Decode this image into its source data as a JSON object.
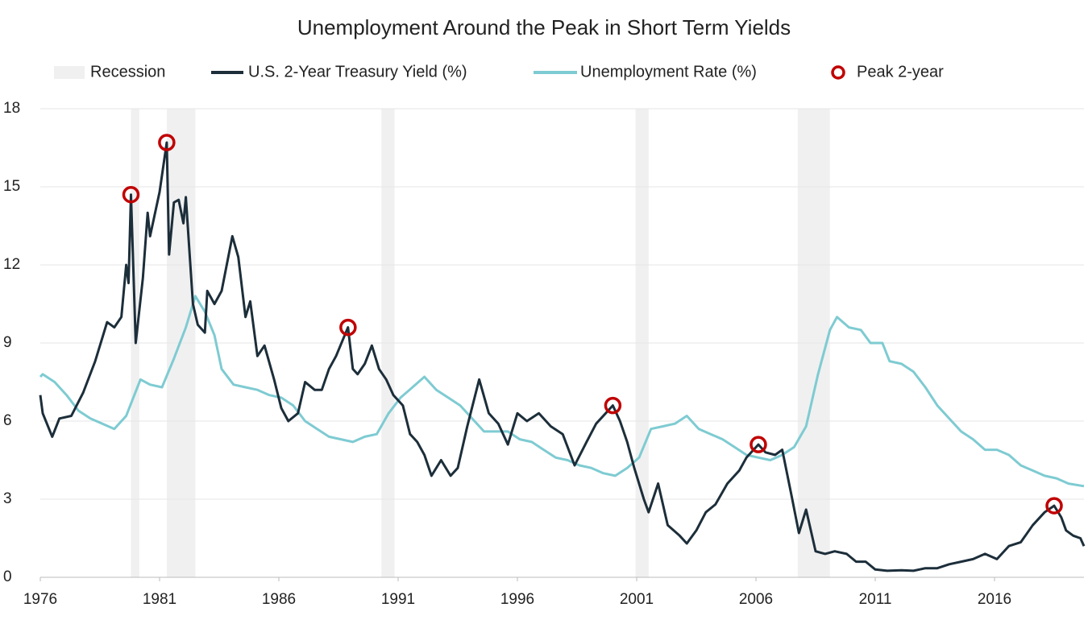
{
  "chart_data": {
    "type": "line",
    "title": "Unemployment Around the Peak in Short Term Yields",
    "xlim": [
      1976,
      2019.75
    ],
    "xticks": [
      1976,
      1981,
      1986,
      1991,
      1996,
      2001,
      2006,
      2011,
      2016
    ],
    "ylim": [
      0,
      18
    ],
    "yticks": [
      0,
      3,
      6,
      9,
      12,
      15,
      18
    ],
    "grid": true,
    "legend": "top",
    "series": [
      {
        "name": "Recession",
        "type": "band",
        "color": "#f0f0f0",
        "ranges": [
          [
            1979.8,
            1980.15
          ],
          [
            1981.3,
            1982.5
          ],
          [
            1990.3,
            1990.85
          ],
          [
            2000.95,
            2001.5
          ],
          [
            2007.75,
            2009.1
          ]
        ]
      },
      {
        "name": "U.S. 2-Year Treasury Yield (%)",
        "type": "line",
        "color": "#1c2e3a",
        "x": [
          1976.0,
          1976.1,
          1976.5,
          1976.8,
          1977.3,
          1977.8,
          1978.3,
          1978.8,
          1979.1,
          1979.4,
          1979.6,
          1979.7,
          1979.8,
          1980.0,
          1980.3,
          1980.5,
          1980.6,
          1981.0,
          1981.3,
          1981.4,
          1981.6,
          1981.8,
          1982.0,
          1982.1,
          1982.4,
          1982.6,
          1982.9,
          1983.0,
          1983.3,
          1983.6,
          1984.05,
          1984.3,
          1984.6,
          1984.8,
          1985.1,
          1985.4,
          1985.8,
          1986.1,
          1986.4,
          1986.8,
          1987.1,
          1987.5,
          1987.8,
          1988.1,
          1988.4,
          1988.9,
          1989.1,
          1989.3,
          1989.6,
          1989.9,
          1990.2,
          1990.5,
          1990.8,
          1991.2,
          1991.5,
          1991.8,
          1992.1,
          1992.4,
          1992.8,
          1993.2,
          1993.5,
          1993.9,
          1994.4,
          1994.8,
          1995.2,
          1995.6,
          1996.0,
          1996.4,
          1996.9,
          1997.4,
          1997.9,
          1998.4,
          1998.9,
          1999.3,
          2000.0,
          2000.3,
          2000.6,
          2000.9,
          2001.3,
          2001.5,
          2001.9,
          2002.3,
          2002.8,
          2003.1,
          2003.5,
          2003.9,
          2004.3,
          2004.8,
          2005.3,
          2005.6,
          2006.1,
          2006.4,
          2006.8,
          2007.1,
          2007.5,
          2007.8,
          2008.1,
          2008.5,
          2008.9,
          2009.3,
          2009.8,
          2010.2,
          2010.6,
          2011.0,
          2011.5,
          2012.1,
          2012.6,
          2013.1,
          2013.6,
          2014.1,
          2014.6,
          2015.1,
          2015.6,
          2016.1,
          2016.6,
          2017.1,
          2017.6,
          2018.1,
          2018.5,
          2018.8,
          2019.0,
          2019.3,
          2019.6,
          2019.75
        ],
        "values": [
          7.0,
          6.3,
          5.4,
          6.1,
          6.2,
          7.1,
          8.3,
          9.8,
          9.6,
          10.0,
          12.0,
          11.3,
          14.7,
          9.0,
          11.5,
          14.0,
          13.1,
          14.8,
          16.7,
          12.4,
          14.4,
          14.5,
          13.6,
          14.6,
          10.5,
          9.7,
          9.4,
          11.0,
          10.5,
          11.0,
          13.1,
          12.3,
          10.0,
          10.6,
          8.5,
          8.9,
          7.6,
          6.5,
          6.0,
          6.3,
          7.5,
          7.2,
          7.2,
          8.0,
          8.5,
          9.6,
          8.0,
          7.8,
          8.2,
          8.9,
          8.0,
          7.6,
          7.0,
          6.6,
          5.5,
          5.2,
          4.7,
          3.9,
          4.5,
          3.9,
          4.2,
          5.8,
          7.6,
          6.3,
          5.9,
          5.1,
          6.3,
          6.0,
          6.3,
          5.8,
          5.5,
          4.3,
          5.2,
          5.9,
          6.6,
          6.0,
          5.2,
          4.2,
          3.0,
          2.5,
          3.6,
          2.0,
          1.6,
          1.3,
          1.8,
          2.5,
          2.8,
          3.6,
          4.1,
          4.6,
          5.1,
          4.8,
          4.7,
          4.9,
          3.1,
          1.7,
          2.6,
          1.0,
          0.9,
          1.0,
          0.9,
          0.6,
          0.6,
          0.3,
          0.25,
          0.27,
          0.25,
          0.35,
          0.35,
          0.5,
          0.6,
          0.7,
          0.9,
          0.7,
          1.2,
          1.35,
          2.0,
          2.5,
          2.75,
          2.3,
          1.8,
          1.6,
          1.5,
          1.2
        ]
      },
      {
        "name": "Unemployment Rate (%)",
        "type": "line",
        "color": "#7ecbd2",
        "x": [
          1976.0,
          1976.1,
          1976.6,
          1977.1,
          1977.6,
          1978.1,
          1978.6,
          1979.1,
          1979.6,
          1979.9,
          1980.2,
          1980.6,
          1981.1,
          1981.6,
          1982.1,
          1982.5,
          1982.9,
          1983.3,
          1983.6,
          1984.1,
          1984.6,
          1985.1,
          1985.6,
          1986.1,
          1986.6,
          1987.1,
          1987.6,
          1988.1,
          1988.6,
          1989.1,
          1989.6,
          1990.1,
          1990.6,
          1991.1,
          1991.6,
          1992.1,
          1992.6,
          1993.1,
          1993.6,
          1994.1,
          1994.6,
          1995.1,
          1995.6,
          1996.1,
          1996.6,
          1997.1,
          1997.6,
          1998.1,
          1998.6,
          1999.1,
          1999.6,
          2000.1,
          2000.6,
          2001.1,
          2001.6,
          2002.1,
          2002.6,
          2003.1,
          2003.6,
          2004.1,
          2004.6,
          2005.1,
          2005.6,
          2006.1,
          2006.6,
          2007.1,
          2007.6,
          2008.1,
          2008.6,
          2009.1,
          2009.4,
          2009.9,
          2010.4,
          2010.8,
          2011.3,
          2011.6,
          2012.1,
          2012.6,
          2013.1,
          2013.6,
          2014.1,
          2014.6,
          2015.1,
          2015.6,
          2016.1,
          2016.6,
          2017.1,
          2017.6,
          2018.1,
          2018.6,
          2019.1,
          2019.75
        ],
        "values": [
          7.7,
          7.8,
          7.5,
          7.0,
          6.4,
          6.1,
          5.9,
          5.7,
          6.2,
          6.9,
          7.6,
          7.4,
          7.3,
          8.4,
          9.6,
          10.8,
          10.2,
          9.3,
          8.0,
          7.4,
          7.3,
          7.2,
          7.0,
          6.9,
          6.6,
          6.0,
          5.7,
          5.4,
          5.3,
          5.2,
          5.4,
          5.5,
          6.3,
          6.9,
          7.3,
          7.7,
          7.2,
          6.9,
          6.6,
          6.1,
          5.6,
          5.6,
          5.6,
          5.3,
          5.2,
          4.9,
          4.6,
          4.5,
          4.3,
          4.2,
          4.0,
          3.9,
          4.2,
          4.6,
          5.7,
          5.8,
          5.9,
          6.2,
          5.7,
          5.5,
          5.3,
          5.0,
          4.7,
          4.6,
          4.5,
          4.7,
          5.0,
          5.8,
          7.8,
          9.5,
          10.0,
          9.6,
          9.5,
          9.0,
          9.0,
          8.3,
          8.2,
          7.9,
          7.3,
          6.6,
          6.1,
          5.6,
          5.3,
          4.9,
          4.9,
          4.7,
          4.3,
          4.1,
          3.9,
          3.8,
          3.6,
          3.5
        ]
      },
      {
        "name": "Peak 2-year",
        "type": "scatter",
        "color": "#c00000",
        "x": [
          1979.8,
          1981.3,
          1988.9,
          2000.0,
          2006.1,
          2018.5
        ],
        "values": [
          14.7,
          16.7,
          9.6,
          6.6,
          5.1,
          2.75
        ]
      }
    ]
  }
}
